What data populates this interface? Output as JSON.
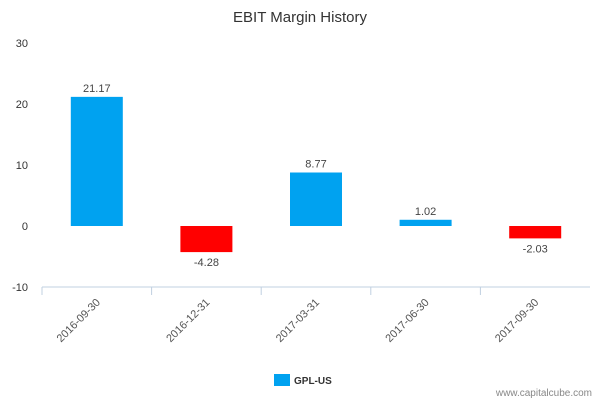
{
  "chart_data": {
    "type": "bar",
    "title": "EBIT Margin History",
    "xlabel": "",
    "ylabel": "",
    "categories": [
      "2016-09-30",
      "2016-12-31",
      "2017-03-31",
      "2017-06-30",
      "2017-09-30"
    ],
    "series": [
      {
        "name": "GPL-US",
        "values": [
          21.17,
          -4.28,
          8.77,
          1.02,
          -2.03
        ],
        "value_labels": [
          "21.17",
          "-4.28",
          "8.77",
          "1.02",
          "-2.03"
        ]
      }
    ],
    "ylim": [
      -10,
      30
    ],
    "yticks": [
      "30",
      "20",
      "10",
      "0",
      "-10"
    ],
    "grid": false,
    "legend": "bottom-center",
    "colors": {
      "positive": "#00a2f0",
      "negative": "#ff0000",
      "axis": "#c0d0e0"
    }
  },
  "watermark": "www.capitalcube.com"
}
